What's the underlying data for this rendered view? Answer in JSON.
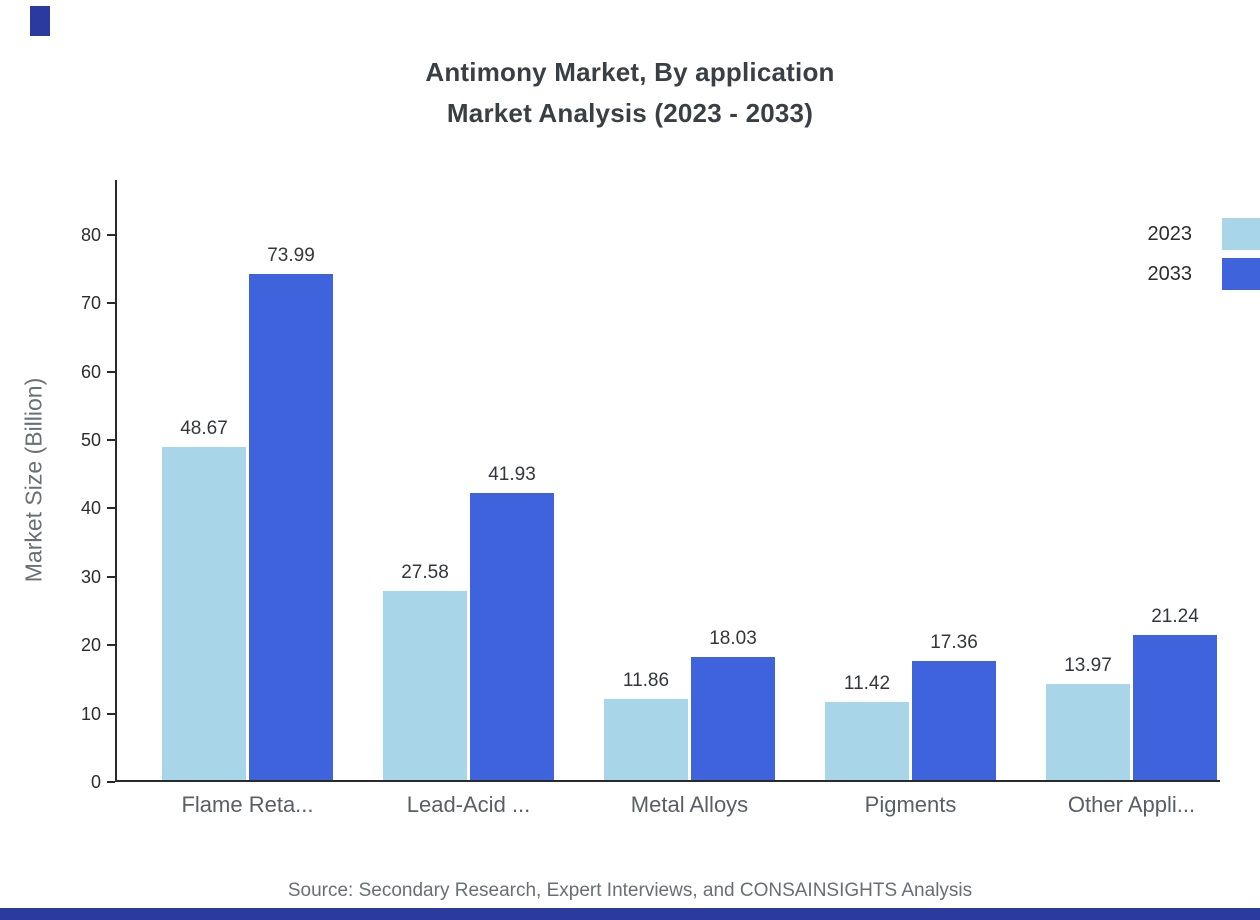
{
  "title": {
    "line1": "Antimony Market, By application",
    "line2": "Market Analysis (2023 - 2033)"
  },
  "source": "Source: Secondary Research, Expert Interviews, and CONSAINSIGHTS Analysis",
  "colors": {
    "series_2023": "#a8d6e8",
    "series_2033": "#3e63dc",
    "accent_navy": "#2b3a9e",
    "axis": "#2a2a2a"
  },
  "chart_data": {
    "type": "bar",
    "title": "Antimony Market, By application Market Analysis (2023 - 2033)",
    "categories": [
      "Flame Reta...",
      "Lead-Acid ...",
      "Metal Alloys",
      "Pigments",
      "Other Appli..."
    ],
    "series": [
      {
        "name": "2023",
        "color": "#a8d6e8",
        "values": [
          48.67,
          27.58,
          11.86,
          11.42,
          13.97
        ]
      },
      {
        "name": "2033",
        "color": "#3e63dc",
        "values": [
          73.99,
          41.93,
          18.03,
          17.36,
          21.24
        ]
      }
    ],
    "xlabel": "",
    "ylabel": "Market Size (Billion)",
    "ylim": [
      0,
      88
    ],
    "yticks": [
      0,
      10,
      20,
      30,
      40,
      50,
      60,
      70,
      80
    ],
    "grid": false,
    "legend_position": "top-right",
    "value_labels": true
  }
}
